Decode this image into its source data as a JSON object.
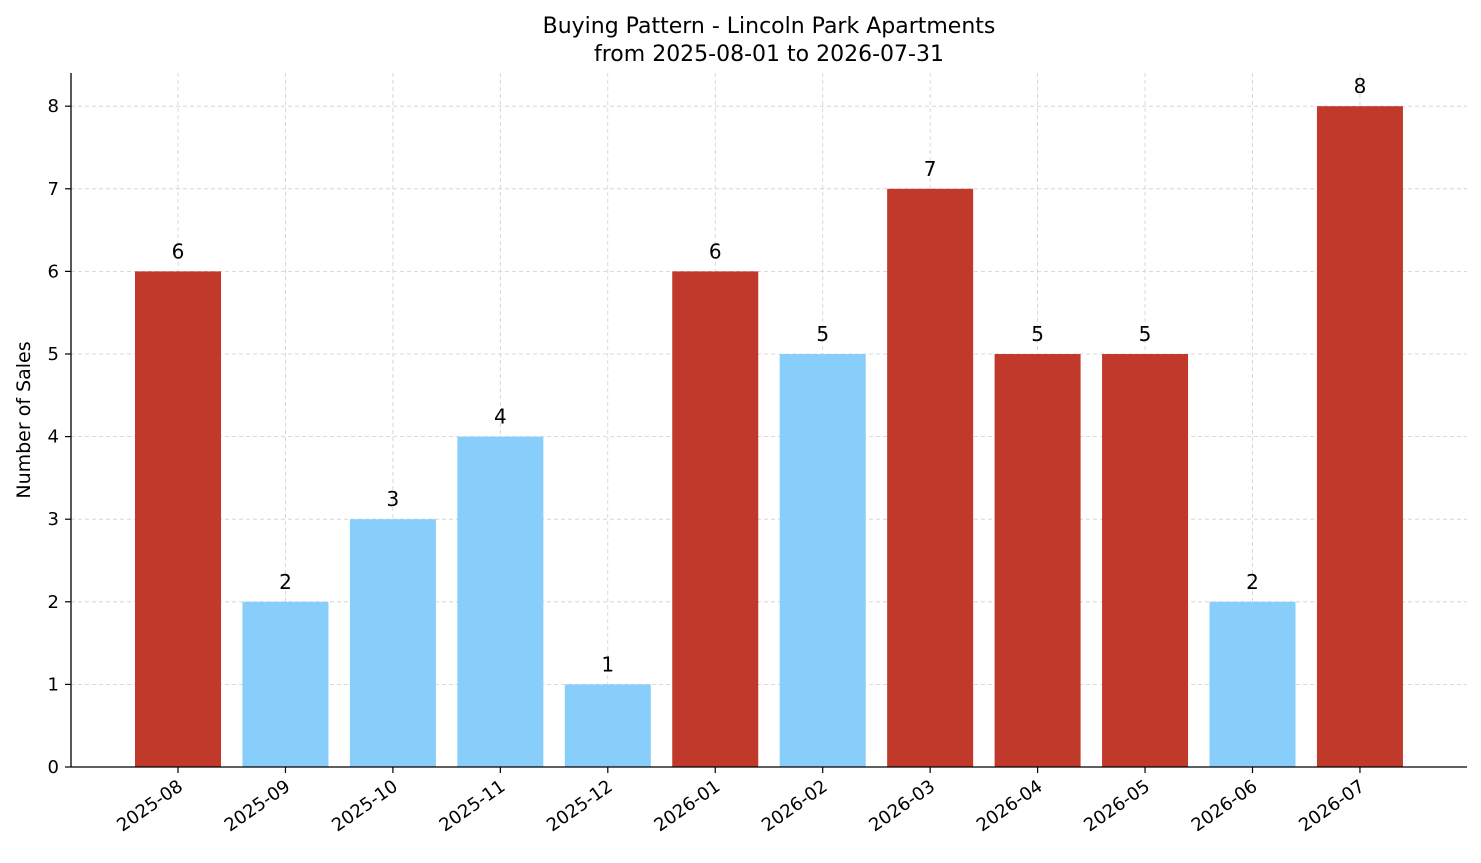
{
  "chart_data": {
    "type": "bar",
    "title": "Buying Pattern - Lincoln Park Apartments",
    "subtitle": "from 2025-08-01 to 2026-07-31",
    "xlabel": "",
    "ylabel": "Number of Sales",
    "categories": [
      "2025-08",
      "2025-09",
      "2025-10",
      "2025-11",
      "2025-12",
      "2026-01",
      "2026-02",
      "2026-03",
      "2026-04",
      "2026-05",
      "2026-06",
      "2026-07"
    ],
    "values": [
      6,
      2,
      3,
      4,
      1,
      6,
      5,
      7,
      5,
      5,
      2,
      8
    ],
    "bar_colors": [
      "#c0392b",
      "#87cefa",
      "#87cefa",
      "#87cefa",
      "#87cefa",
      "#c0392b",
      "#87cefa",
      "#c0392b",
      "#c0392b",
      "#c0392b",
      "#87cefa",
      "#c0392b"
    ],
    "ylim": [
      0,
      8.4
    ],
    "yticks": [
      0,
      1,
      2,
      3,
      4,
      5,
      6,
      7,
      8
    ],
    "grid": true,
    "data_labels": true,
    "legend": "none"
  }
}
